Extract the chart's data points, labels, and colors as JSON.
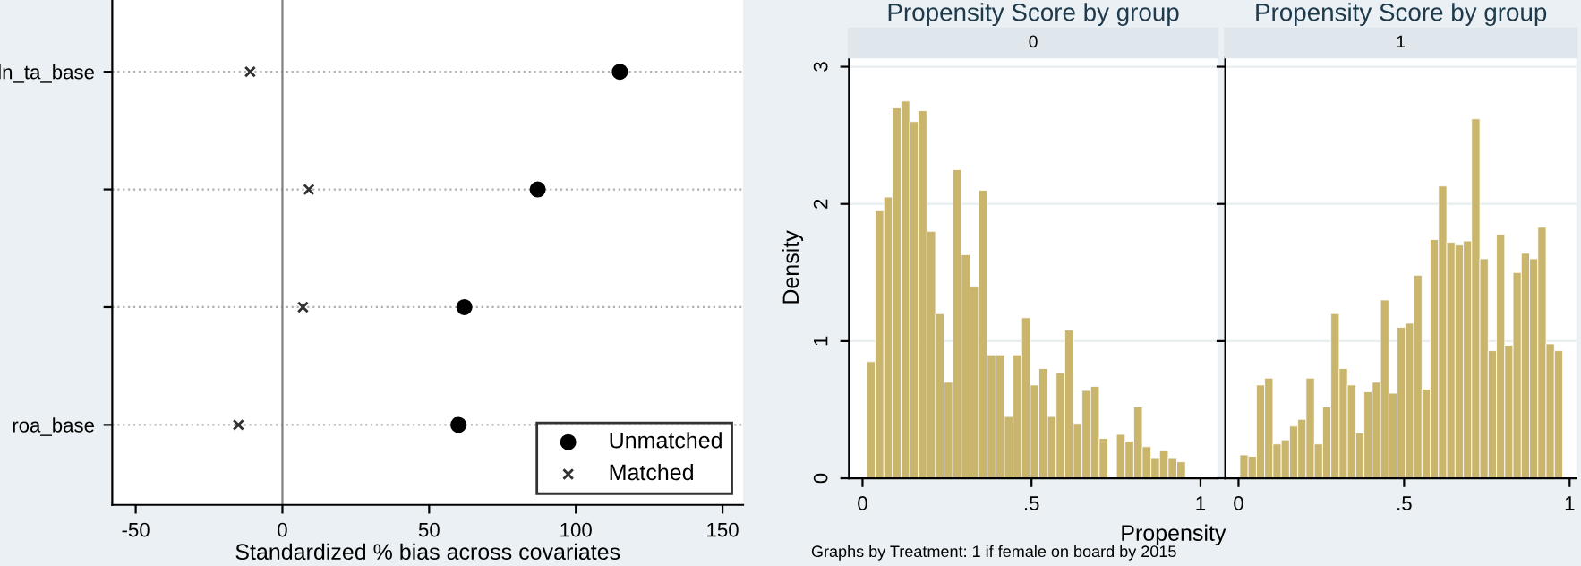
{
  "chart_data": [
    {
      "type": "scatter",
      "orientation": "horizontal",
      "xlabel": "Standardized % bias across covariates",
      "categories": [
        "ln_ta_base",
        null,
        null,
        "roa_base"
      ],
      "xlim": [
        -58,
        157
      ],
      "xticks": [
        -50,
        0,
        50,
        100,
        150
      ],
      "grid": "y",
      "legend": "bottom right",
      "ref_lines": [
        {
          "axis": "x",
          "value": 0,
          "color": "#808080"
        }
      ],
      "series": [
        {
          "name": "Unmatched",
          "color": "#000000",
          "marker": "circle",
          "values": [
            115,
            87,
            62,
            60
          ]
        },
        {
          "name": "Matched",
          "color": "#303030",
          "marker": "cross",
          "values": [
            -11,
            9,
            7,
            -15
          ]
        }
      ]
    },
    {
      "type": "histogram",
      "title": "Propensity Score by group",
      "subtitle": "0",
      "ylabel": "Density",
      "xlabel": "Propensity",
      "annotations": [
        "Graphs by Treatment: 1 if female on board by 2015"
      ],
      "color": "#c9b56c",
      "grid": "y",
      "xlim": [
        -0.04,
        1.05
      ],
      "ylim": [
        0,
        3.07
      ],
      "xticks": [
        0,
        {
          "value": 0.5,
          "label": ".5"
        },
        1
      ],
      "yticks": [
        0,
        1,
        2,
        3
      ],
      "bins": [
        0.012,
        0.0375,
        0.063,
        0.0885,
        0.114,
        0.1395,
        0.165,
        0.1905,
        0.216,
        0.2415,
        0.267,
        0.2925,
        0.318,
        0.3435,
        0.369,
        0.3945,
        0.42,
        0.4455,
        0.471,
        0.4965,
        0.522,
        0.5475,
        0.573,
        0.5985,
        0.624,
        0.6495,
        0.675,
        0.7005,
        0.726,
        0.7515,
        0.777,
        0.8025,
        0.828,
        0.8535,
        0.879,
        0.9045,
        0.93,
        0.9555
      ],
      "values": [
        0.85,
        1.95,
        2.05,
        2.7,
        2.75,
        2.6,
        2.68,
        1.8,
        1.2,
        0.7,
        2.25,
        1.63,
        1.4,
        2.1,
        0.9,
        0.9,
        0.45,
        0.9,
        1.17,
        0.68,
        0.8,
        0.45,
        0.77,
        1.08,
        0.4,
        0.64,
        0.67,
        0.29,
        0,
        0.32,
        0.27,
        0.52,
        0.23,
        0.15,
        0.2,
        0.15,
        0.12
      ]
    },
    {
      "type": "histogram",
      "title": "Propensity Score by group",
      "subtitle": "1",
      "color": "#c9b56c",
      "grid": "y",
      "tick_labels": "x",
      "xlim": [
        -0.04,
        1.02
      ],
      "ylim": [
        0,
        3.07
      ],
      "xticks": [
        0,
        {
          "value": 0.5,
          "label": ".5"
        },
        1
      ],
      "yticks": [
        0,
        1,
        2,
        3
      ],
      "bins": [
        0.004,
        0.029,
        0.054,
        0.079,
        0.104,
        0.129,
        0.154,
        0.179,
        0.204,
        0.229,
        0.254,
        0.279,
        0.304,
        0.329,
        0.354,
        0.379,
        0.404,
        0.429,
        0.454,
        0.479,
        0.504,
        0.529,
        0.554,
        0.579,
        0.604,
        0.629,
        0.654,
        0.679,
        0.704,
        0.729,
        0.754,
        0.779,
        0.804,
        0.829,
        0.854,
        0.879,
        0.904,
        0.929,
        0.954,
        0.979
      ],
      "values": [
        0.17,
        0.16,
        0.68,
        0.73,
        0.25,
        0.28,
        0.38,
        0.43,
        0.73,
        0.25,
        0.52,
        1.2,
        0.8,
        0.68,
        0.33,
        0.63,
        0.7,
        1.3,
        0.62,
        1.1,
        1.13,
        1.48,
        0.65,
        1.74,
        2.13,
        1.72,
        1.7,
        1.73,
        2.62,
        1.6,
        0.93,
        1.78,
        0.97,
        1.5,
        1.64,
        1.6,
        1.83,
        0.98,
        0.93
      ]
    }
  ]
}
